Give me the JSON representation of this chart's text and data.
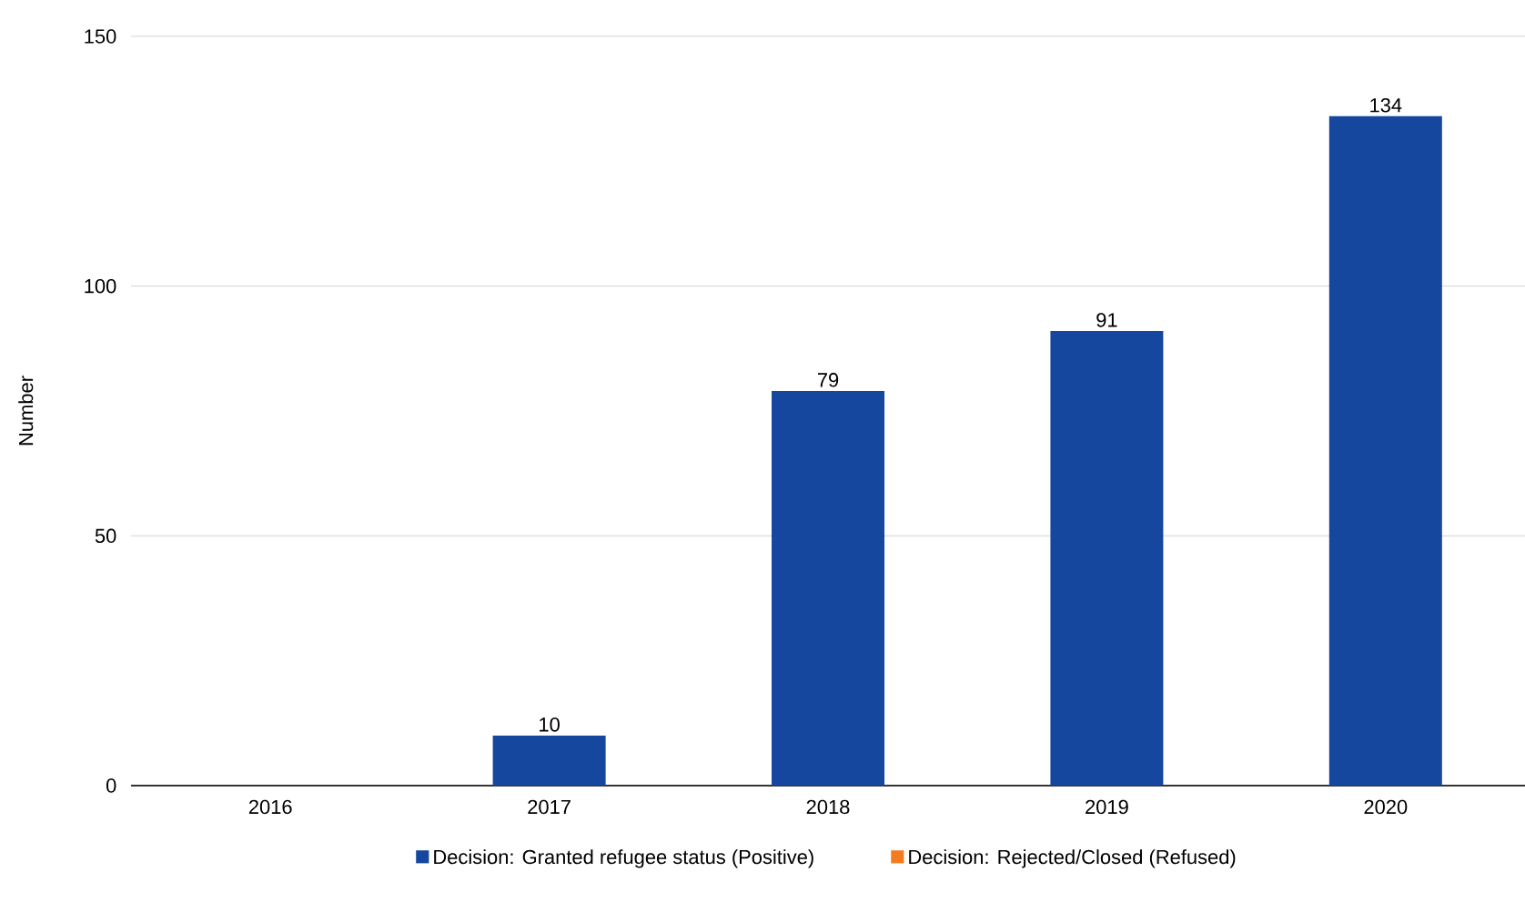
{
  "chart_data": {
    "type": "bar",
    "ylabel": "Number",
    "categories": [
      "2016",
      "2017",
      "2018",
      "2019",
      "2020"
    ],
    "series": [
      {
        "name": "Decision: Granted refugee status (Positive)",
        "color": "#15479e",
        "values": [
          null,
          10,
          79,
          91,
          134
        ]
      },
      {
        "name": "Decision: Rejected/Closed (Refused)",
        "color": "#f47b20",
        "values": [
          null,
          null,
          null,
          null,
          null
        ]
      }
    ],
    "ylim": [
      0,
      150
    ],
    "yticks": [
      0,
      50,
      100,
      150
    ],
    "grid": "y",
    "legend": "bottom",
    "data_labels": true
  }
}
